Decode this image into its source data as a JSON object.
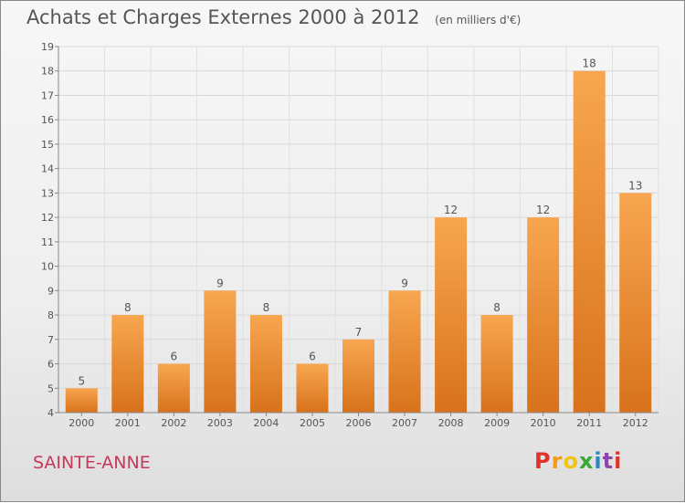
{
  "header": {
    "title": "Achats et Charges Externes 2000 à 2012",
    "unit": "(en milliers d'€)"
  },
  "footer": {
    "city": "SAINTE-ANNE",
    "logo": "Proxiti"
  },
  "colors": {
    "bar_top": "#f8a650",
    "bar_bottom": "#d8721c",
    "city": "#c8385a",
    "logo": [
      "#e0322a",
      "#f39c12",
      "#f1c40f",
      "#3aaa35",
      "#2e86c1",
      "#8e44ad",
      "#e0322a"
    ]
  },
  "chart_data": {
    "type": "bar",
    "categories": [
      "2000",
      "2001",
      "2002",
      "2003",
      "2004",
      "2005",
      "2006",
      "2007",
      "2008",
      "2009",
      "2010",
      "2011",
      "2012"
    ],
    "values": [
      5,
      8,
      6,
      9,
      8,
      6,
      7,
      9,
      12,
      8,
      12,
      18,
      13
    ],
    "ylim": [
      4,
      19
    ],
    "yticks": [
      4,
      5,
      6,
      7,
      8,
      9,
      10,
      11,
      12,
      13,
      14,
      15,
      16,
      17,
      18,
      19
    ],
    "grid": true,
    "data_labels": true
  }
}
